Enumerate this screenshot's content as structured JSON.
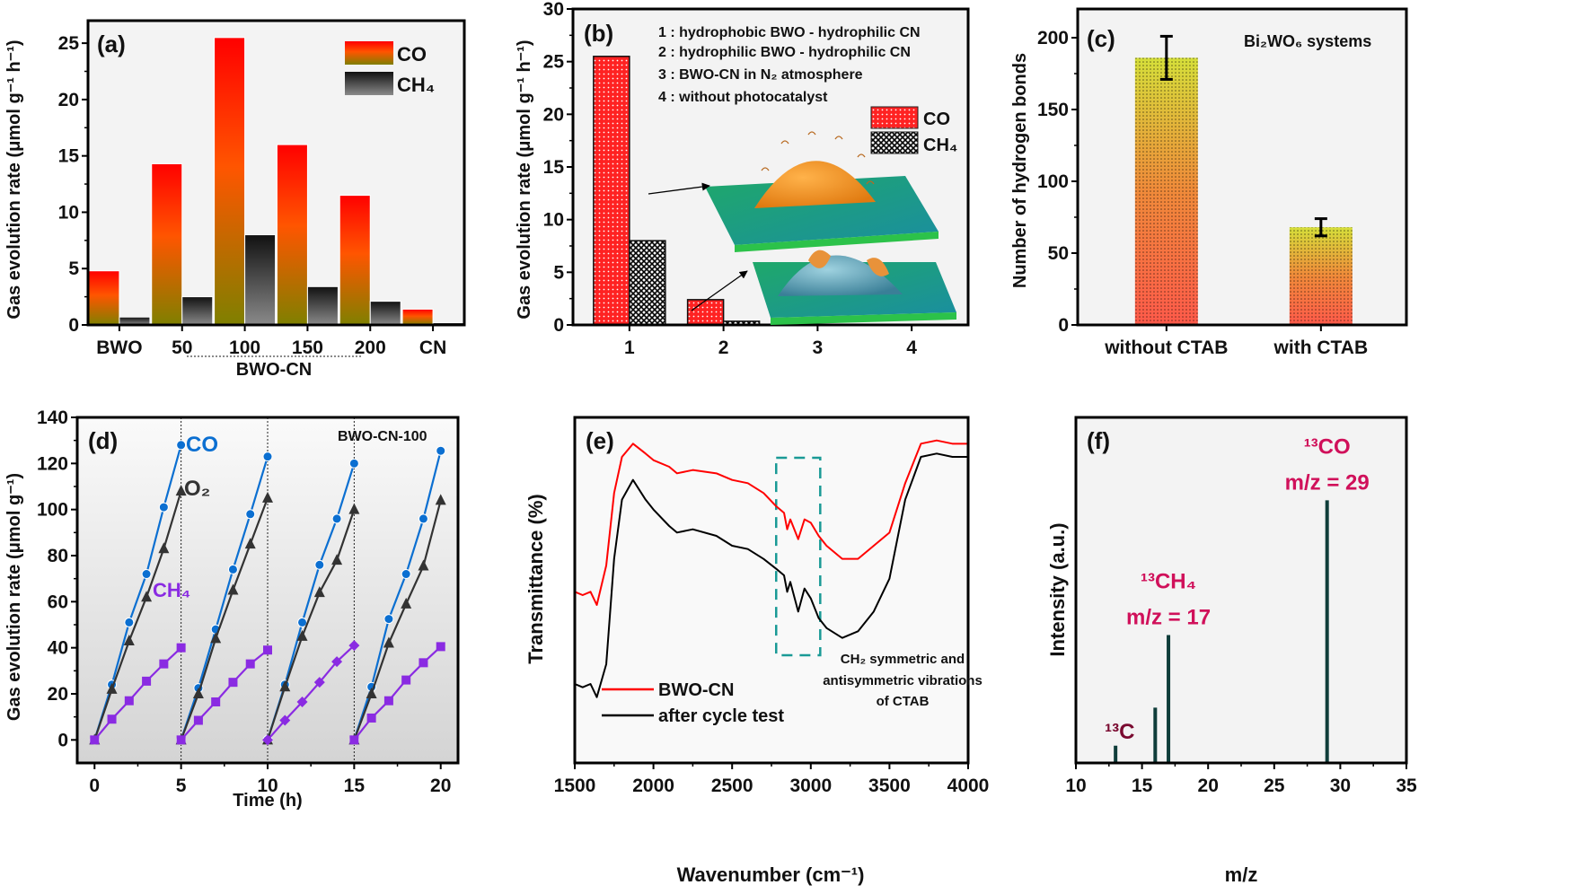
{
  "figure": {
    "panels": [
      "(a)",
      "(b)",
      "(c)",
      "(d)",
      "(e)",
      "(f)"
    ]
  },
  "colors": {
    "plot_bg": "#f3f3f3",
    "co_top": "#ff0000",
    "co_mid": "#ff5a00",
    "co_bottom": "#7f8000",
    "ch4_top": "#111111",
    "ch4_bottom": "#8a8a8a",
    "b_co": "#ff2a2a",
    "c_top": "#d8e03a",
    "c_bottom": "#ff5a4a",
    "d_co": "#0b6fd1",
    "d_o2": "#333333",
    "d_ch4": "#8a2be2",
    "e_bwo": "#ff0000",
    "e_after": "#000000",
    "e_box": "#1a9a96",
    "f_peak": "#0f3d3a",
    "f_label": "#d0105a",
    "f_label_c": "#7a0a30"
  },
  "chart_data": [
    {
      "id": "a",
      "type": "bar",
      "panel_label": "(a)",
      "ylabel": "Gas evolution rate (μmol g⁻¹ h⁻¹)",
      "xlabel": "",
      "categories": [
        "BWO",
        "50",
        "100",
        "150",
        "200",
        "CN"
      ],
      "group_label": "BWO-CN",
      "group_members": [
        "50",
        "100",
        "150",
        "200"
      ],
      "ylim": [
        0,
        27
      ],
      "yticks": [
        0,
        5,
        10,
        15,
        20,
        25
      ],
      "series": [
        {
          "name": "CO",
          "values": [
            4.8,
            14.3,
            25.5,
            16.0,
            11.5,
            1.4
          ]
        },
        {
          "name": "CH₄",
          "values": [
            0.7,
            2.5,
            8.0,
            3.4,
            2.1,
            0.2
          ]
        }
      ],
      "legend": [
        "CO",
        "CH₄"
      ],
      "legend_position": "top-right"
    },
    {
      "id": "b",
      "type": "bar",
      "panel_label": "(b)",
      "ylabel": "Gas evolution rate (μmol g⁻¹ h⁻¹)",
      "xlabel": "",
      "categories": [
        "1",
        "2",
        "3",
        "4"
      ],
      "ylim": [
        0,
        30
      ],
      "yticks": [
        0,
        5,
        10,
        15,
        20,
        25,
        30
      ],
      "series": [
        {
          "name": "CO",
          "values": [
            25.5,
            2.4,
            0,
            0
          ]
        },
        {
          "name": "CH₄",
          "values": [
            8.0,
            0.35,
            0,
            0
          ]
        }
      ],
      "legend": [
        "CO",
        "CH₄"
      ],
      "legend_position": "right",
      "annotations": [
        "1 : hydrophobic BWO - hydrophilic CN",
        "2 : hydrophilic BWO - hydrophilic CN",
        "3 : BWO-CN in N₂ atmosphere",
        "4 : without photocatalyst"
      ],
      "insets": [
        "hydrophobic-droplet-illustration",
        "hydrophilic-droplet-illustration"
      ]
    },
    {
      "id": "c",
      "type": "bar",
      "panel_label": "(c)",
      "title": "Bi₂WO₆ systems",
      "ylabel": "Number of hydrogen bonds",
      "xlabel": "",
      "categories": [
        "without CTAB",
        "with CTAB"
      ],
      "values": [
        186,
        68
      ],
      "errors": [
        15,
        6
      ],
      "ylim": [
        0,
        220
      ],
      "yticks": [
        0,
        50,
        100,
        150,
        200
      ]
    },
    {
      "id": "d",
      "type": "line",
      "panel_label": "(d)",
      "title": "BWO-CN-100",
      "xlabel": "Time (h)",
      "ylabel": "Gas evolution rate (μmol g⁻¹)",
      "xlim": [
        -1,
        21
      ],
      "ylim": [
        -10,
        140
      ],
      "xticks": [
        0,
        5,
        10,
        15,
        20
      ],
      "yticks": [
        0,
        20,
        40,
        60,
        80,
        100,
        120,
        140
      ],
      "cycle_boundaries": [
        5,
        10,
        15
      ],
      "cycles": [
        [
          0,
          1,
          2,
          3,
          4,
          5
        ],
        [
          5,
          6,
          7,
          8,
          9,
          10
        ],
        [
          10,
          11,
          12,
          13,
          14,
          15
        ],
        [
          15,
          16,
          17,
          18,
          19,
          20
        ]
      ],
      "series": [
        {
          "name": "CO",
          "label": "CO",
          "values": [
            [
              0,
              24,
              51,
              72,
              101,
              128
            ],
            [
              0,
              22.5,
              48,
              74,
              98,
              123
            ],
            [
              0,
              24,
              51,
              76,
              96,
              120
            ],
            [
              0,
              23,
              52.5,
              72,
              96,
              125.5
            ]
          ]
        },
        {
          "name": "O₂",
          "label": "O₂",
          "values": [
            [
              0,
              22,
              43,
              62,
              83,
              108
            ],
            [
              0,
              20,
              44,
              65,
              85,
              105
            ],
            [
              0,
              23,
              45,
              64,
              78,
              100
            ],
            [
              0,
              20,
              42,
              59,
              75.5,
              104
            ]
          ]
        },
        {
          "name": "CH₄",
          "label": "CH₄",
          "values": [
            [
              0,
              9,
              17,
              25.5,
              33,
              40
            ],
            [
              0,
              8.5,
              16.5,
              25,
              33,
              39
            ],
            [
              0,
              8.5,
              16.5,
              25,
              34,
              41
            ],
            [
              0,
              9.5,
              17,
              26,
              33.5,
              40.5
            ]
          ]
        }
      ]
    },
    {
      "id": "e",
      "type": "line",
      "panel_label": "(e)",
      "xlabel": "Wavenumber (cm⁻¹)",
      "ylabel": "Transmittance (%)",
      "xlim": [
        1500,
        4000
      ],
      "xticks": [
        1500,
        2000,
        2500,
        3000,
        3500,
        4000
      ],
      "series": [
        {
          "name": "BWO-CN",
          "x": [
            1500,
            1550,
            1600,
            1640,
            1700,
            1750,
            1800,
            1870,
            1950,
            2000,
            2100,
            2150,
            2250,
            2400,
            2500,
            2600,
            2700,
            2780,
            2830,
            2850,
            2870,
            2920,
            2960,
            3000,
            3050,
            3100,
            3200,
            3300,
            3400,
            3500,
            3600,
            3700,
            3800,
            3900,
            4000
          ],
          "y": [
            0.52,
            0.51,
            0.52,
            0.48,
            0.6,
            0.82,
            0.93,
            0.97,
            0.94,
            0.92,
            0.9,
            0.88,
            0.89,
            0.88,
            0.86,
            0.85,
            0.82,
            0.78,
            0.76,
            0.71,
            0.74,
            0.68,
            0.74,
            0.73,
            0.69,
            0.66,
            0.62,
            0.62,
            0.66,
            0.7,
            0.85,
            0.97,
            0.98,
            0.97,
            0.97
          ]
        },
        {
          "name": "after cycle test",
          "x": [
            1500,
            1550,
            1600,
            1640,
            1700,
            1750,
            1800,
            1870,
            1950,
            2000,
            2100,
            2150,
            2250,
            2400,
            2500,
            2600,
            2700,
            2780,
            2830,
            2850,
            2870,
            2920,
            2960,
            3000,
            3050,
            3100,
            3200,
            3300,
            3400,
            3500,
            3600,
            3700,
            3800,
            3900,
            4000
          ],
          "y": [
            0.24,
            0.23,
            0.24,
            0.2,
            0.3,
            0.62,
            0.8,
            0.86,
            0.8,
            0.77,
            0.72,
            0.7,
            0.71,
            0.69,
            0.66,
            0.65,
            0.62,
            0.59,
            0.57,
            0.52,
            0.55,
            0.46,
            0.53,
            0.5,
            0.44,
            0.41,
            0.38,
            0.4,
            0.46,
            0.56,
            0.8,
            0.93,
            0.94,
            0.93,
            0.93
          ]
        }
      ],
      "legend": [
        "BWO-CN",
        "after cycle test"
      ],
      "legend_position": "bottom-left",
      "highlight_range": [
        2780,
        3060
      ],
      "annotation": [
        "CH₂ symmetric and",
        "antisymmetric vibrations",
        "of CTAB"
      ]
    },
    {
      "id": "f",
      "type": "bar",
      "panel_label": "(f)",
      "xlabel": "m/z",
      "ylabel": "Intensity (a.u.)",
      "xlim": [
        10,
        35
      ],
      "xticks": [
        10,
        15,
        20,
        25,
        30,
        35
      ],
      "peaks": [
        {
          "mz": 13,
          "intensity": 0.05
        },
        {
          "mz": 16,
          "intensity": 0.16
        },
        {
          "mz": 17,
          "intensity": 0.37
        },
        {
          "mz": 29,
          "intensity": 0.76
        }
      ],
      "labels": [
        {
          "text": "¹³C",
          "mz": 13
        },
        {
          "text": "¹³CH₄",
          "sub": "m/z = 17",
          "mz": 17
        },
        {
          "text": "¹³CO",
          "sub": "m/z = 29",
          "mz": 29
        }
      ]
    }
  ]
}
